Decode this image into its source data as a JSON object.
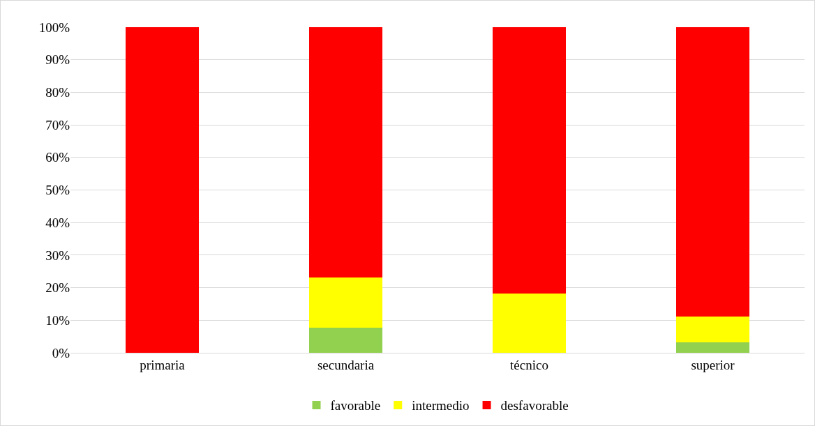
{
  "chart_data": {
    "type": "bar",
    "stacked": true,
    "categories": [
      "primaria",
      "secundaria",
      "técnico",
      "superior"
    ],
    "series": [
      {
        "name": "favorable",
        "color": "#92d050",
        "values": [
          0,
          7.7,
          0,
          3.3
        ]
      },
      {
        "name": "intermedio",
        "color": "#ffff00",
        "values": [
          0,
          15.4,
          18.2,
          7.8
        ]
      },
      {
        "name": "desfavorable",
        "color": "#ff0000",
        "values": [
          100,
          76.9,
          81.8,
          88.9
        ]
      }
    ],
    "ylim": [
      0,
      100
    ],
    "yticks": [
      {
        "value": 0,
        "label": "0%"
      },
      {
        "value": 10,
        "label": "10%"
      },
      {
        "value": 20,
        "label": "20%"
      },
      {
        "value": 30,
        "label": "30%"
      },
      {
        "value": 40,
        "label": "40%"
      },
      {
        "value": 50,
        "label": "50%"
      },
      {
        "value": 60,
        "label": "60%"
      },
      {
        "value": 70,
        "label": "70%"
      },
      {
        "value": 80,
        "label": "80%"
      },
      {
        "value": 90,
        "label": "90%"
      },
      {
        "value": 100,
        "label": "100%"
      }
    ],
    "grid": "y",
    "legend": "bottom"
  }
}
